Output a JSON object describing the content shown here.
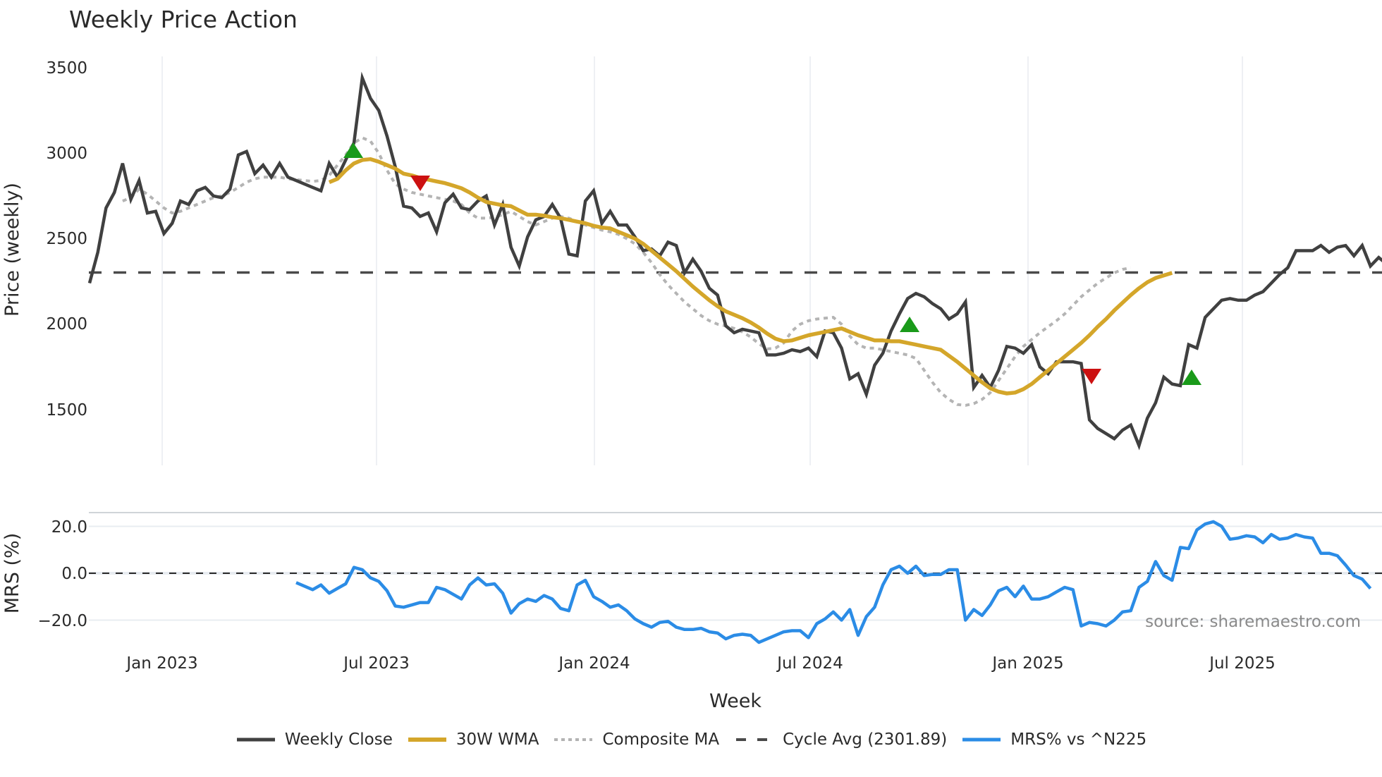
{
  "title": "Weekly Price Action",
  "colors": {
    "weekly_close": "#404040",
    "wma30": "#d4a62a",
    "composite_ma": "#b4b4b4",
    "cycle_avg": "#4a4a4a",
    "mrs": "#2b8ce6",
    "buy_marker": "#1a9a1a",
    "sell_marker": "#cc1111",
    "grid": "#e8ecf1"
  },
  "price_panel": {
    "ylabel": "Price (weekly)",
    "yticks": [
      "3500",
      "3000",
      "2500",
      "2000",
      "1500"
    ]
  },
  "mrs_panel": {
    "ylabel": "MRS (%)",
    "yticks": [
      "20.0",
      "0.0",
      "−20.0"
    ]
  },
  "xaxis": {
    "title": "Week",
    "ticks": [
      "Jan 2023",
      "Jul 2023",
      "Jan 2024",
      "Jul 2024",
      "Jan 2025",
      "Jul 2025"
    ]
  },
  "source": "source: sharemaestro.com",
  "legend": [
    {
      "label": "Weekly Close",
      "style": "solid",
      "color": "#404040"
    },
    {
      "label": "30W WMA",
      "style": "solid",
      "color": "#d4a62a"
    },
    {
      "label": "Composite MA",
      "style": "dotted",
      "color": "#b4b4b4"
    },
    {
      "label": "Cycle Avg (2301.89)",
      "style": "dashed",
      "color": "#4a4a4a"
    },
    {
      "label": "MRS% vs ^N225",
      "style": "solid",
      "color": "#2b8ce6"
    }
  ],
  "chart_data": [
    {
      "type": "line",
      "title": "Weekly Price Action",
      "xlabel": "Week",
      "ylabel": "Price (weekly)",
      "ylim": [
        1150,
        3550
      ],
      "x_ticks": [
        "Jan 2023",
        "Jul 2023",
        "Jan 2024",
        "Jul 2024",
        "Jan 2025",
        "Jul 2025"
      ],
      "x_range": [
        "2022-11-14",
        "2025-10-13"
      ],
      "grid": true,
      "series": [
        {
          "name": "Weekly Close",
          "values": [
            2240,
            2420,
            2680,
            2770,
            2940,
            2730,
            2840,
            2650,
            2660,
            2530,
            2590,
            2720,
            2700,
            2780,
            2800,
            2750,
            2740,
            2790,
            2990,
            3010,
            2880,
            2930,
            2860,
            2940,
            2860,
            2840,
            2820,
            2800,
            2780,
            2940,
            2860,
            2960,
            3060,
            3440,
            3320,
            3250,
            3100,
            2920,
            2690,
            2680,
            2630,
            2650,
            2540,
            2710,
            2760,
            2680,
            2670,
            2720,
            2750,
            2580,
            2700,
            2450,
            2340,
            2510,
            2610,
            2630,
            2700,
            2620,
            2410,
            2400,
            2720,
            2780,
            2590,
            2660,
            2580,
            2580,
            2510,
            2430,
            2440,
            2400,
            2480,
            2460,
            2300,
            2380,
            2310,
            2210,
            2170,
            1990,
            1950,
            1970,
            1960,
            1950,
            1820,
            1820,
            1830,
            1850,
            1840,
            1860,
            1810,
            1960,
            1950,
            1860,
            1680,
            1710,
            1590,
            1760,
            1830,
            1960,
            2060,
            2150,
            2180,
            2160,
            2120,
            2090,
            2030,
            2060,
            2130,
            1630,
            1700,
            1630,
            1730,
            1870,
            1860,
            1830,
            1880,
            1750,
            1710,
            1780,
            1780,
            1780,
            1770,
            1440,
            1390,
            1360,
            1330,
            1380,
            1410,
            1290,
            1450,
            1540,
            1690,
            1650,
            1640,
            1880,
            1860,
            2040,
            2090,
            2140,
            2150,
            2140,
            2140,
            2170,
            2190,
            2240,
            2290,
            2330,
            2430,
            2430,
            2430,
            2460,
            2420,
            2450,
            2460,
            2400,
            2460,
            2340,
            2390,
            2350
          ]
        },
        {
          "name": "30W WMA",
          "start_week_index": 29,
          "values": [
            2830,
            2850,
            2900,
            2940,
            2960,
            2965,
            2950,
            2930,
            2910,
            2880,
            2870,
            2855,
            2845,
            2835,
            2825,
            2810,
            2795,
            2770,
            2740,
            2715,
            2705,
            2695,
            2690,
            2665,
            2640,
            2640,
            2635,
            2625,
            2620,
            2610,
            2600,
            2590,
            2575,
            2565,
            2560,
            2540,
            2520,
            2500,
            2470,
            2430,
            2390,
            2350,
            2310,
            2265,
            2220,
            2180,
            2140,
            2105,
            2075,
            2055,
            2035,
            2010,
            1980,
            1945,
            1915,
            1900,
            1905,
            1920,
            1935,
            1945,
            1955,
            1965,
            1975,
            1955,
            1935,
            1920,
            1905,
            1905,
            1900,
            1900,
            1890,
            1880,
            1870,
            1860,
            1850,
            1815,
            1780,
            1740,
            1700,
            1660,
            1625,
            1605,
            1595,
            1600,
            1620,
            1650,
            1690,
            1730,
            1770,
            1810,
            1850,
            1890,
            1935,
            1985,
            2030,
            2080,
            2125,
            2170,
            2210,
            2245,
            2270,
            2285,
            2300
          ]
        },
        {
          "name": "Composite MA",
          "start_week_index": 4,
          "values": [
            2720,
            2740,
            2790,
            2760,
            2720,
            2680,
            2650,
            2660,
            2680,
            2700,
            2720,
            2740,
            2750,
            2770,
            2800,
            2830,
            2850,
            2860,
            2860,
            2860,
            2850,
            2845,
            2840,
            2835,
            2840,
            2870,
            2930,
            2990,
            3060,
            3090,
            3070,
            3000,
            2900,
            2820,
            2790,
            2770,
            2760,
            2750,
            2740,
            2730,
            2720,
            2700,
            2650,
            2620,
            2620,
            2625,
            2640,
            2660,
            2630,
            2600,
            2580,
            2600,
            2620,
            2630,
            2620,
            2600,
            2580,
            2565,
            2550,
            2540,
            2525,
            2500,
            2470,
            2420,
            2360,
            2290,
            2230,
            2180,
            2130,
            2090,
            2050,
            2020,
            2000,
            1990,
            1975,
            1955,
            1925,
            1885,
            1855,
            1860,
            1890,
            1960,
            2000,
            2020,
            2030,
            2035,
            2040,
            2000,
            1930,
            1880,
            1860,
            1860,
            1850,
            1840,
            1830,
            1820,
            1800,
            1730,
            1660,
            1600,
            1560,
            1530,
            1525,
            1535,
            1560,
            1600,
            1670,
            1740,
            1810,
            1870,
            1910,
            1950,
            1985,
            2020,
            2060,
            2110,
            2160,
            2200,
            2240,
            2270,
            2300,
            2320,
            2330
          ]
        },
        {
          "name": "Cycle Avg (2301.89)",
          "values": [
            2301.89
          ]
        }
      ],
      "markers": [
        {
          "type": "buy",
          "shape": "triangle-up",
          "color": "#1a9a1a",
          "date": "2023-06",
          "price": 3000
        },
        {
          "type": "sell",
          "shape": "triangle-down",
          "color": "#cc1111",
          "date": "2023-08",
          "price": 2830
        },
        {
          "type": "buy",
          "shape": "triangle-up",
          "color": "#1a9a1a",
          "date": "2024-10",
          "price": 1990
        },
        {
          "type": "sell",
          "shape": "triangle-down",
          "color": "#cc1111",
          "date": "2025-03",
          "price": 1700
        },
        {
          "type": "buy",
          "shape": "triangle-up",
          "color": "#1a9a1a",
          "date": "2025-05",
          "price": 1680
        }
      ]
    },
    {
      "type": "line",
      "title": "",
      "xlabel": "Week",
      "ylabel": "MRS (%)",
      "ylim": [
        -28,
        26
      ],
      "y_ticks": [
        20,
        0,
        -20
      ],
      "grid": true,
      "reference_line": 0,
      "series": [
        {
          "name": "MRS% vs ^N225",
          "start_week_index": 25,
          "values": [
            -4,
            -5.5,
            -7,
            -5,
            -8.5,
            -6.5,
            -4.5,
            2.5,
            1.5,
            -2,
            -3.5,
            -7.5,
            -14,
            -14.5,
            -13.5,
            -12.5,
            -12.5,
            -6,
            -7,
            -9,
            -11,
            -5,
            -2,
            -5,
            -4.5,
            -8.5,
            -17,
            -13,
            -11,
            -12,
            -9.5,
            -11,
            -15,
            -16,
            -5,
            -3,
            -10,
            -12,
            -14.5,
            -13.5,
            -16,
            -19.5,
            -21.5,
            -23,
            -21,
            -20.5,
            -23,
            -24,
            -24,
            -23.5,
            -25,
            -25.5,
            -28,
            -26.5,
            -26,
            -26.5,
            -29.5,
            -28,
            -26.5,
            -25,
            -24.5,
            -24.5,
            -27.5,
            -21.5,
            -19.5,
            -16.5,
            -20,
            -15.5,
            -26.5,
            -18.5,
            -14.5,
            -5,
            1.5,
            3,
            0,
            3,
            -1,
            -0.5,
            -0.5,
            1.5,
            1.5,
            -20,
            -15.5,
            -18,
            -13.5,
            -7.5,
            -6,
            -10,
            -5.5,
            -11,
            -11,
            -10,
            -8,
            -6,
            -7,
            -22.5,
            -21,
            -21.5,
            -22.5,
            -20,
            -16.5,
            -16,
            -6,
            -3.5,
            5,
            -1,
            -3,
            11,
            10.5,
            18.5,
            21,
            22,
            20,
            14.5,
            15,
            16,
            15.5,
            13,
            16.5,
            14.5,
            15,
            16.5,
            15.5,
            15,
            8.5,
            8.5,
            7.5,
            3.5,
            -1,
            -2.5,
            -6.5
          ]
        }
      ]
    }
  ]
}
